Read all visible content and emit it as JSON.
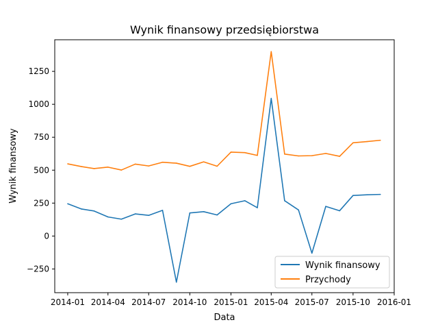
{
  "chart_data": {
    "type": "line",
    "title": "Wynik finansowy przedsiębiorstwa",
    "xlabel": "Data",
    "ylabel": "Wynik finansowy",
    "x": [
      "2014-01",
      "2014-02",
      "2014-03",
      "2014-04",
      "2014-05",
      "2014-06",
      "2014-07",
      "2014-08",
      "2014-09",
      "2014-10",
      "2014-11",
      "2014-12",
      "2015-01",
      "2015-02",
      "2015-03",
      "2015-04",
      "2015-05",
      "2015-06",
      "2015-07",
      "2015-08",
      "2015-09",
      "2015-10",
      "2015-11",
      "2015-12"
    ],
    "xlim": [
      "2013-12-03",
      "2016-01-01"
    ],
    "ylim": [
      -430,
      1490
    ],
    "xticks": [
      {
        "date": "2014-01-01",
        "label": "2014-01"
      },
      {
        "date": "2014-04-01",
        "label": "2014-04"
      },
      {
        "date": "2014-07-01",
        "label": "2014-07"
      },
      {
        "date": "2014-10-01",
        "label": "2014-10"
      },
      {
        "date": "2015-01-01",
        "label": "2015-01"
      },
      {
        "date": "2015-04-01",
        "label": "2015-04"
      },
      {
        "date": "2015-07-01",
        "label": "2015-07"
      },
      {
        "date": "2015-10-01",
        "label": "2015-10"
      },
      {
        "date": "2016-01-01",
        "label": "2016-01"
      }
    ],
    "yticks": [
      -250,
      0,
      250,
      500,
      750,
      1000,
      1250
    ],
    "series": [
      {
        "name": "Wynik finansowy",
        "color": "#1f77b4",
        "values": [
          245,
          205,
          190,
          145,
          128,
          168,
          157,
          195,
          -350,
          175,
          185,
          160,
          245,
          268,
          215,
          1045,
          268,
          198,
          -130,
          225,
          192,
          308,
          313,
          316
        ]
      },
      {
        "name": "Przychody",
        "color": "#ff7f0e",
        "values": [
          548,
          527,
          512,
          523,
          501,
          546,
          532,
          560,
          553,
          529,
          563,
          530,
          637,
          633,
          612,
          1400,
          622,
          608,
          610,
          627,
          605,
          708,
          717,
          727
        ]
      }
    ],
    "legend_position": "bottom-right",
    "grid": false
  }
}
